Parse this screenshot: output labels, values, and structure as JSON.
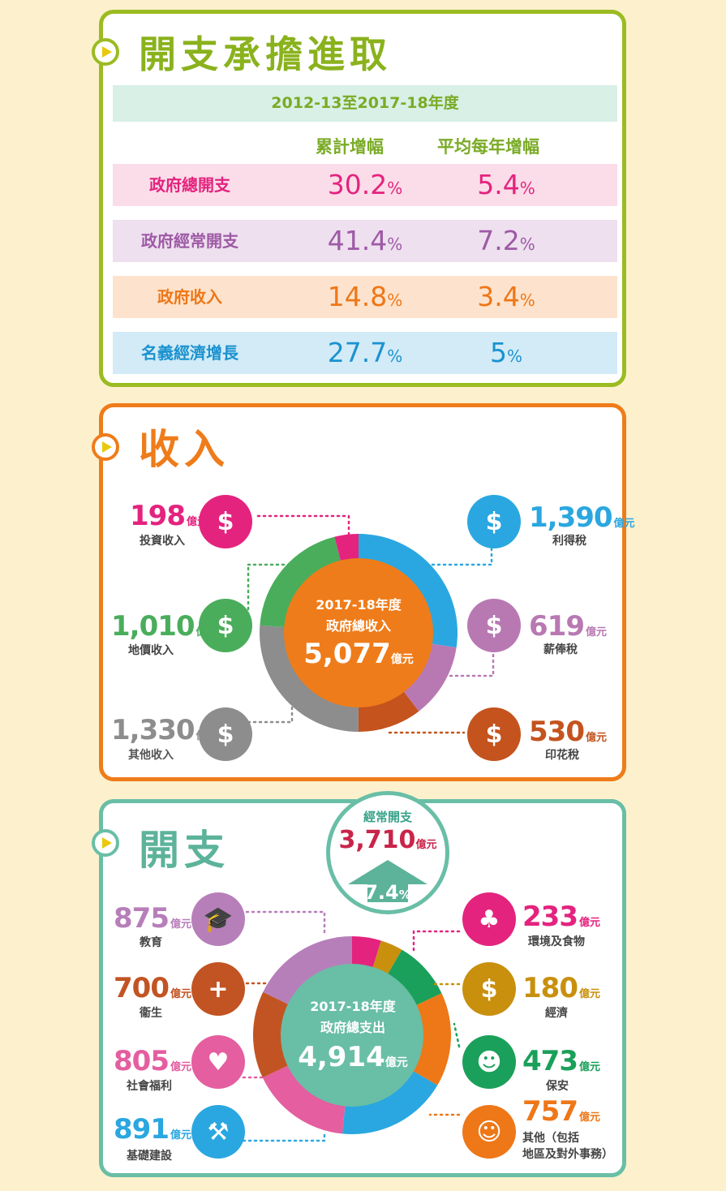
{
  "growth": {
    "title": "開支承擔進取",
    "period": "2012-13至2017-18年度",
    "col1": "累計增幅",
    "col2": "平均每年增幅",
    "pct": "%",
    "rows": [
      {
        "label": "政府總開支",
        "cum": "30.2",
        "avg": "5.4",
        "color": "#e4237e",
        "bg": "#fbdde9"
      },
      {
        "label": "政府經常開支",
        "cum": "41.4",
        "avg": "7.2",
        "color": "#9e5aa5",
        "bg": "#eee0ef"
      },
      {
        "label": "政府收入",
        "cum": "14.8",
        "avg": "3.4",
        "color": "#ee7718",
        "bg": "#fde3cd"
      },
      {
        "label": "名義經濟增長",
        "cum": "27.7",
        "avg": "5",
        "color": "#1b92cf",
        "bg": "#d2ebf7"
      }
    ]
  },
  "revenue": {
    "title": "收入",
    "unit": "億元",
    "center_line1": "2017-18年度",
    "center_line2": "政府總收入",
    "center_value": "5,077",
    "items": [
      {
        "key": "invest",
        "value": "198",
        "label": "投資收入",
        "color": "#e4237e",
        "icon": "investment-icon"
      },
      {
        "key": "land",
        "value": "1,010",
        "label": "地價收入",
        "color": "#4aad5b",
        "icon": "land-icon"
      },
      {
        "key": "other",
        "value": "1,330",
        "label": "其他收入",
        "color": "#8d8d8d",
        "icon": "moneybag-icon"
      },
      {
        "key": "profits",
        "value": "1,390",
        "label": "利得稅",
        "color": "#2aa7e0",
        "icon": "profits-chart-icon"
      },
      {
        "key": "salaries",
        "value": "619",
        "label": "薪俸稅",
        "color": "#b879b3",
        "icon": "salary-person-icon"
      },
      {
        "key": "stamp",
        "value": "530",
        "label": "印花稅",
        "color": "#c4531e",
        "icon": "stamp-icon"
      }
    ]
  },
  "expenditure": {
    "title": "開支",
    "unit": "億元",
    "recurrent_label": "經常開支",
    "recurrent_value": "3,710",
    "recurrent_growth": "7.4",
    "pct": "%",
    "center_line1": "2017-18年度",
    "center_line2": "政府總支出",
    "center_value": "4,914",
    "items": [
      {
        "key": "edu",
        "value": "875",
        "label": "教育",
        "color": "#b77fba",
        "icon": "graduation-cap-icon"
      },
      {
        "key": "health",
        "value": "700",
        "label": "衞生",
        "color": "#c25423",
        "icon": "medical-kit-icon"
      },
      {
        "key": "welfare",
        "value": "805",
        "label": "社會福利",
        "color": "#e45ea0",
        "icon": "heart-hand-icon"
      },
      {
        "key": "infra",
        "value": "891",
        "label": "基礎建設",
        "color": "#2aa7e0",
        "icon": "excavator-icon"
      },
      {
        "key": "env",
        "value": "233",
        "label": "環境及食物",
        "color": "#e4237e",
        "icon": "tree-food-icon"
      },
      {
        "key": "econ",
        "value": "180",
        "label": "經濟",
        "color": "#c9900e",
        "icon": "coins-icon"
      },
      {
        "key": "security",
        "value": "473",
        "label": "保安",
        "color": "#1aa05a",
        "icon": "police-icon"
      },
      {
        "key": "others",
        "value": "757",
        "label": "其他（包括",
        "label2": "地區及對外事務）",
        "color": "#ee7718",
        "icon": "people-icon"
      }
    ]
  }
}
